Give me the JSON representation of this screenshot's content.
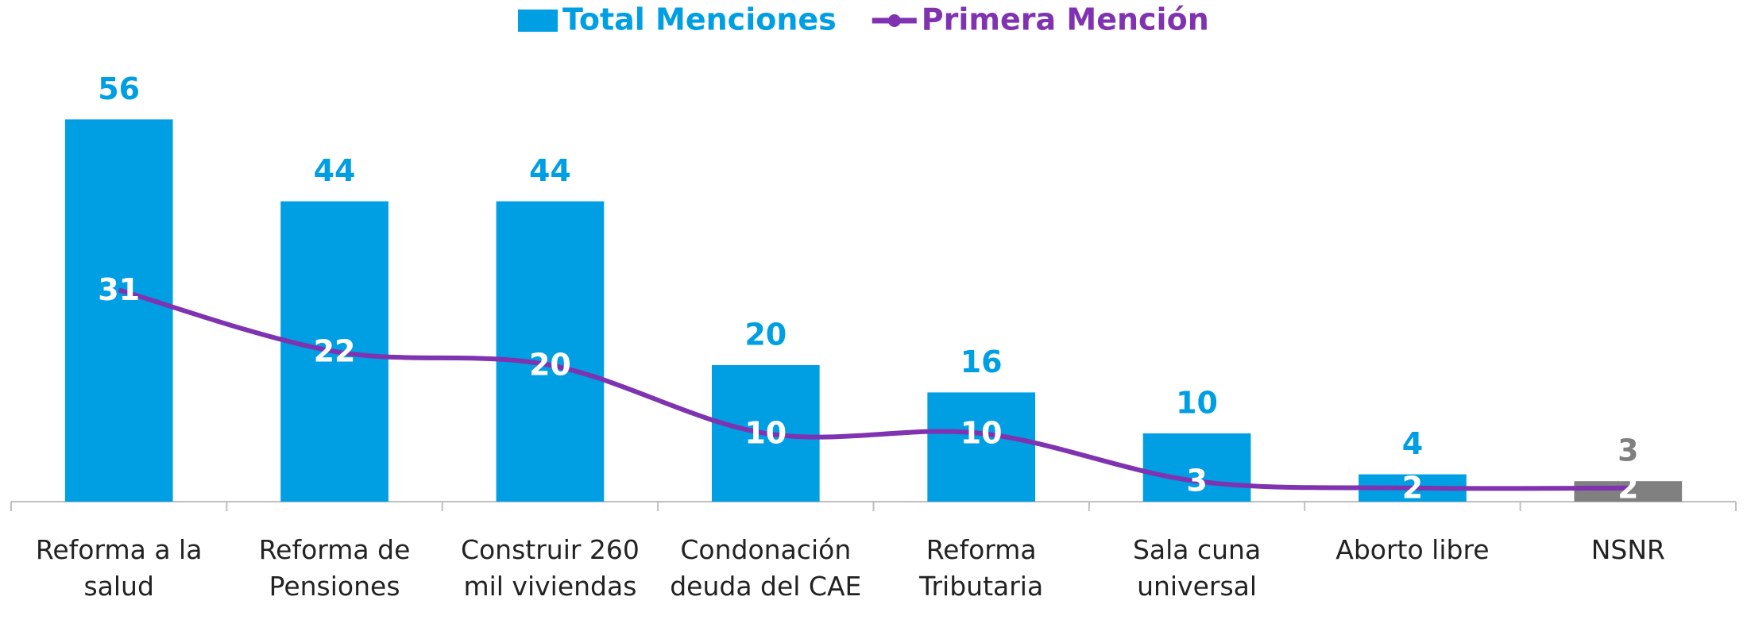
{
  "chart_data": {
    "type": "bar-line",
    "categories": [
      "Reforma a la salud",
      "Reforma de Pensiones",
      "Construir 260 mil viviendas",
      "Condonación deuda del CAE",
      "Reforma Tributaria",
      "Sala cuna universal",
      "Aborto libre",
      "NSNR"
    ],
    "series": [
      {
        "name": "Total Menciones",
        "type": "bar",
        "color": "#009fe3",
        "colors": [
          "#009fe3",
          "#009fe3",
          "#009fe3",
          "#009fe3",
          "#009fe3",
          "#009fe3",
          "#009fe3",
          "#808080"
        ],
        "values": [
          56,
          44,
          44,
          20,
          16,
          10,
          4,
          3
        ]
      },
      {
        "name": "Primera Mención",
        "type": "line",
        "color": "#7f33b0",
        "values": [
          31,
          22,
          20,
          10,
          10,
          3,
          2,
          2
        ]
      }
    ],
    "ylim": [
      0,
      60
    ],
    "legend": "top"
  }
}
